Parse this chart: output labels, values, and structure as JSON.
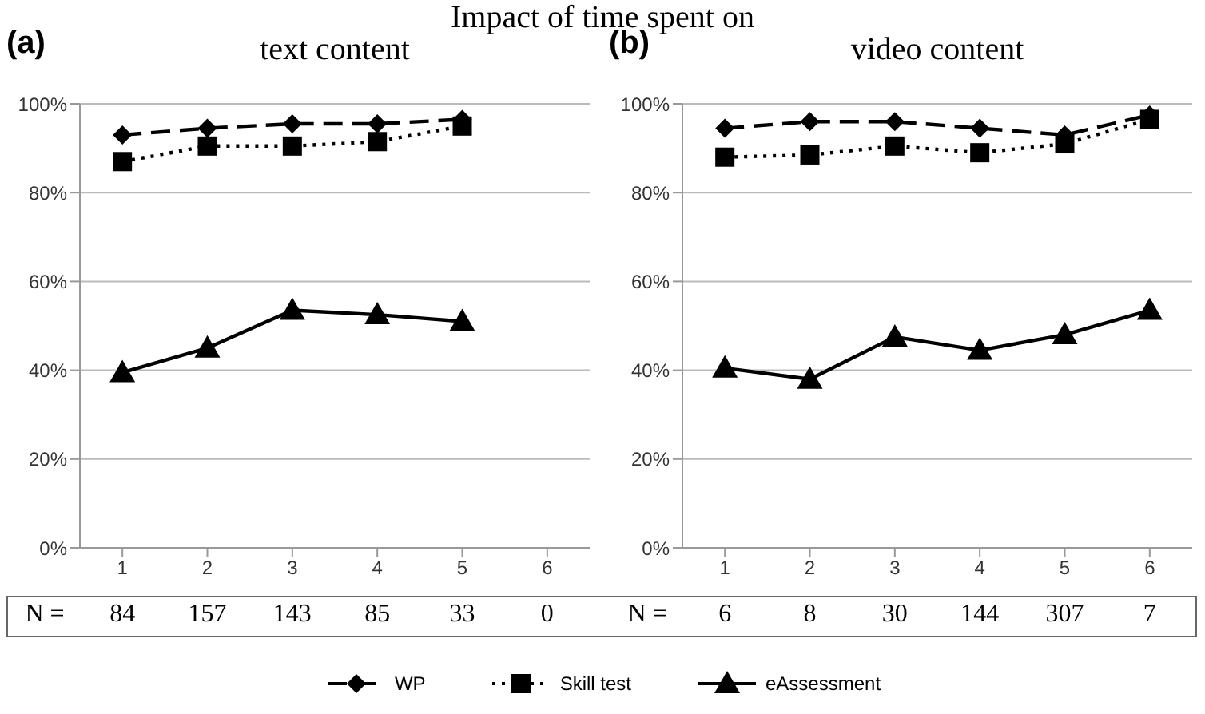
{
  "chart_data": [
    {
      "type": "line",
      "title": "Impact of time spent on",
      "subtitle": "text content",
      "annotations": [
        "(a)",
        "N =",
        "84",
        "157",
        "143",
        "85",
        "33",
        "0"
      ],
      "categories": [
        "1",
        "2",
        "3",
        "4",
        "5",
        "6"
      ],
      "series": [
        {
          "name": "WP",
          "color": "#000000",
          "marker": "diamond",
          "line_style": "dashed",
          "values": [
            93,
            94.5,
            95.5,
            95.5,
            96.5,
            null
          ]
        },
        {
          "name": "Skill test",
          "color": "#000000",
          "marker": "square",
          "line_style": "dotted",
          "values": [
            87,
            90.5,
            90.5,
            91.5,
            95,
            null
          ]
        },
        {
          "name": "eAssessment",
          "color": "#000000",
          "marker": "triangle",
          "line_style": "solid",
          "values": [
            39.5,
            45,
            53.5,
            52.5,
            51,
            null
          ]
        }
      ],
      "ylim": [
        0,
        100
      ],
      "yticks": [
        {
          "value": 0,
          "label": "0%"
        },
        {
          "value": 20,
          "label": "20%"
        },
        {
          "value": 40,
          "label": "40%"
        },
        {
          "value": 60,
          "label": "60%"
        },
        {
          "value": 80,
          "label": "80%"
        },
        {
          "value": 100,
          "label": "100%"
        }
      ],
      "grid": "y",
      "legend": "bottom"
    },
    {
      "type": "line",
      "subtitle": "video content",
      "annotations": [
        "(b)",
        "N =",
        "6",
        "8",
        "30",
        "144",
        "307",
        "7"
      ],
      "categories": [
        "1",
        "2",
        "3",
        "4",
        "5",
        "6"
      ],
      "series": [
        {
          "color": "#000000",
          "marker": "diamond",
          "line_style": "dashed",
          "values": [
            94.5,
            96,
            96,
            94.5,
            93,
            97.5
          ]
        },
        {
          "color": "#000000",
          "marker": "square",
          "line_style": "dotted",
          "values": [
            88,
            88.5,
            90.5,
            89,
            91,
            96.5
          ]
        },
        {
          "color": "#000000",
          "marker": "triangle",
          "line_style": "solid",
          "values": [
            40.5,
            38,
            47.5,
            44.5,
            48,
            53.5
          ]
        }
      ],
      "ylim": [
        0,
        100
      ],
      "yticks": [
        {
          "value": 0,
          "label": "0%"
        },
        {
          "value": 20,
          "label": "20%"
        },
        {
          "value": 40,
          "label": "40%"
        },
        {
          "value": 60,
          "label": "60%"
        },
        {
          "value": 80,
          "label": "80%"
        },
        {
          "value": 100,
          "label": "100%"
        }
      ],
      "grid": "y"
    }
  ]
}
